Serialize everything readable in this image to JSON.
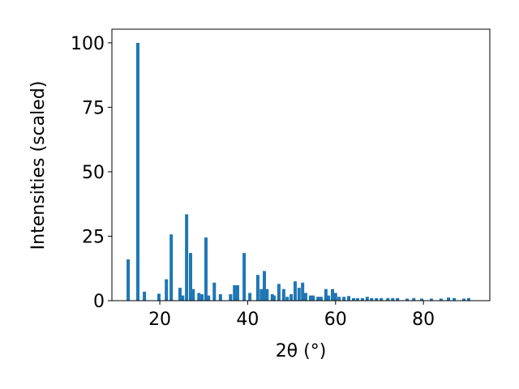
{
  "chart_data": {
    "type": "bar",
    "xlabel": "2θ (°)",
    "ylabel": "Intensities (scaled)",
    "color": "#1f77b4",
    "x": [
      12.8,
      15.0,
      16.5,
      19.8,
      21.5,
      22.6,
      24.6,
      25.2,
      26.1,
      27.0,
      27.6,
      28.9,
      29.6,
      30.5,
      31.1,
      32.4,
      33.8,
      36.1,
      37.0,
      37.7,
      39.2,
      40.5,
      42.3,
      43.1,
      43.8,
      44.4,
      45.6,
      46.0,
      47.1,
      48.2,
      49.0,
      49.9,
      50.8,
      51.7,
      52.5,
      53.2,
      54.3,
      54.9,
      56.0,
      56.7,
      57.8,
      58.4,
      59.3,
      60.0,
      60.8,
      61.9,
      63.0,
      64.1,
      65.0,
      66.1,
      67.2,
      68.2,
      69.3,
      70.4,
      71.9,
      73.0,
      74.1,
      76.3,
      77.8,
      79.6,
      81.8,
      84.0,
      85.7,
      87.0,
      89.2,
      90.3
    ],
    "values": [
      16,
      100,
      3.5,
      2.7,
      8.3,
      25.7,
      5,
      2,
      33.5,
      18.5,
      4.5,
      3,
      2.5,
      24.5,
      2,
      7,
      2.5,
      2.5,
      6,
      6,
      18.5,
      3,
      10,
      4.5,
      11.5,
      4.5,
      2.5,
      2,
      6.5,
      4.5,
      1.5,
      2.5,
      7.5,
      5,
      7,
      3,
      2,
      2,
      1.5,
      1.5,
      4.5,
      2,
      4.5,
      3,
      1.5,
      1.5,
      1.8,
      1,
      1,
      1,
      1.5,
      1,
      1,
      1,
      1,
      1,
      1,
      0.8,
      1,
      0.8,
      0.8,
      0.8,
      1.2,
      1,
      0.8,
      1
    ],
    "xlim": [
      9.1,
      95.1
    ],
    "xticks": [
      20,
      40,
      60,
      80
    ],
    "ylim": [
      0,
      105.3
    ],
    "yticks": [
      0,
      25,
      50,
      75,
      100
    ]
  }
}
